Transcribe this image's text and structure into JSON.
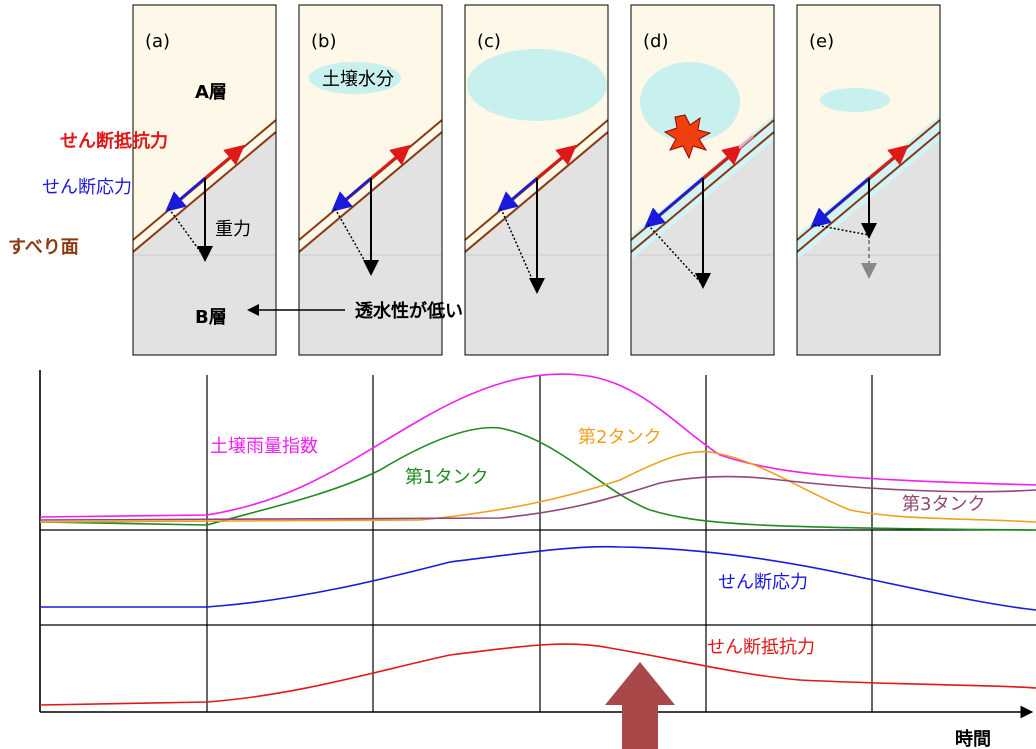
{
  "panels": [
    {
      "label": "(a)"
    },
    {
      "label": "(b)"
    },
    {
      "label": "(c)"
    },
    {
      "label": "(d)"
    },
    {
      "label": "(e)"
    }
  ],
  "layers": {
    "upper": "A層",
    "lower": "B層"
  },
  "forces": {
    "resistance": "せん断抵抗力",
    "stress": "せん断応力",
    "gravity": "重力",
    "slip_surface": "すべり面"
  },
  "soil_moisture": "土壌水分",
  "note": "透水性が低い",
  "graph": {
    "curves": [
      {
        "label": "土壌雨量指数"
      },
      {
        "label": "第1タンク"
      },
      {
        "label": "第2タンク"
      },
      {
        "label": "第3タンク"
      },
      {
        "label": "せん断応力"
      },
      {
        "label": "せん断抵抗力"
      }
    ],
    "x_axis": "時間"
  }
}
